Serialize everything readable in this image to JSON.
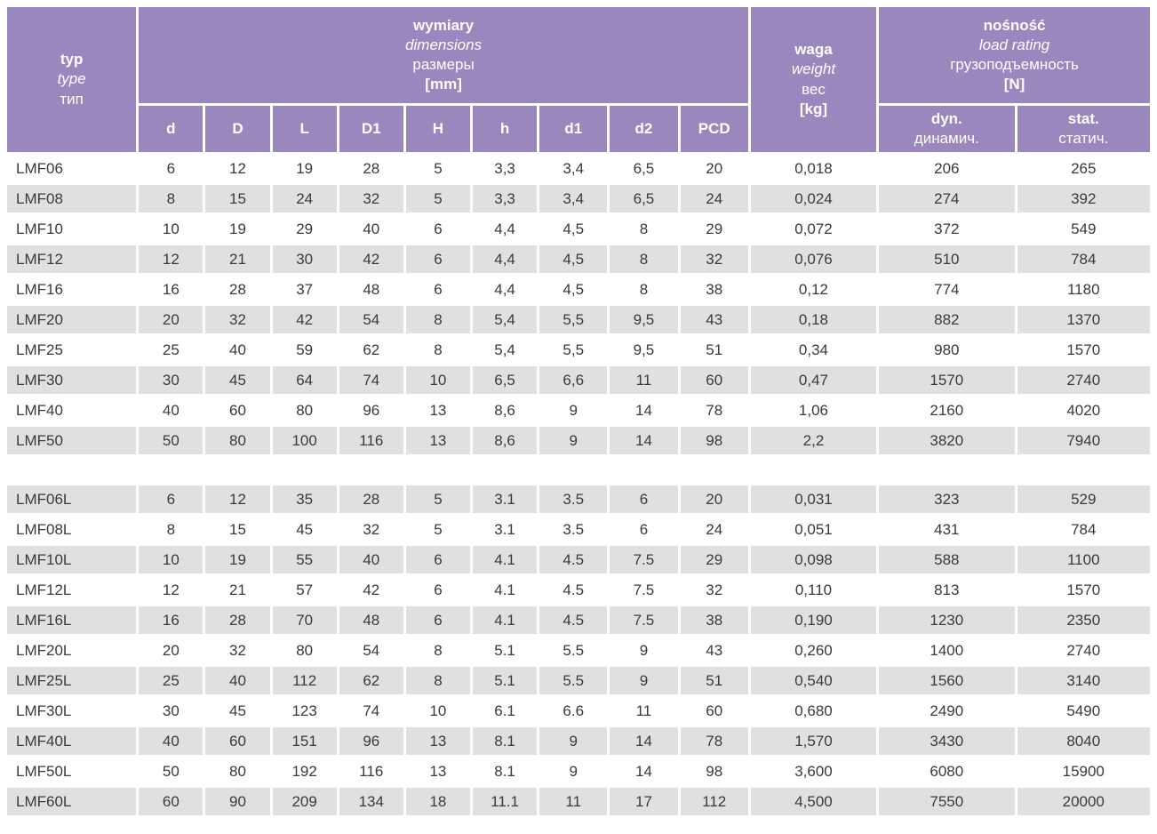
{
  "header": {
    "typ": {
      "pl": "typ",
      "en": "type",
      "ru": "тип"
    },
    "dimensions": {
      "pl": "wymiary",
      "en": "dimensions",
      "ru": "размеры",
      "unit": "[mm]"
    },
    "weight": {
      "pl": "waga",
      "en": "weight",
      "ru": "вес",
      "unit": "[kg]"
    },
    "load": {
      "pl": "nośność",
      "en": "load rating",
      "ru": "грузоподъемность",
      "unit": "[N]"
    },
    "dim_columns": [
      "d",
      "D",
      "L",
      "D1",
      "H",
      "h",
      "d1",
      "d2",
      "PCD"
    ],
    "dyn": {
      "label": "dyn.",
      "ru": "динамич."
    },
    "stat": {
      "label": "stat.",
      "ru": "статич."
    }
  },
  "columns_keys": [
    "typ",
    "d",
    "D",
    "L",
    "D1",
    "H",
    "h",
    "d1",
    "d2",
    "PCD",
    "waga",
    "dyn",
    "stat"
  ],
  "table": {
    "sections": [
      {
        "rows": [
          {
            "type": "LMF06",
            "values": [
              "6",
              "12",
              "19",
              "28",
              "5",
              "3,3",
              "3,4",
              "6,5",
              "20",
              "0,018",
              "206",
              "265"
            ]
          },
          {
            "type": "LMF08",
            "values": [
              "8",
              "15",
              "24",
              "32",
              "5",
              "3,3",
              "3,4",
              "6,5",
              "24",
              "0,024",
              "274",
              "392"
            ]
          },
          {
            "type": "LMF10",
            "values": [
              "10",
              "19",
              "29",
              "40",
              "6",
              "4,4",
              "4,5",
              "8",
              "29",
              "0,072",
              "372",
              "549"
            ]
          },
          {
            "type": "LMF12",
            "values": [
              "12",
              "21",
              "30",
              "42",
              "6",
              "4,4",
              "4,5",
              "8",
              "32",
              "0,076",
              "510",
              "784"
            ]
          },
          {
            "type": "LMF16",
            "values": [
              "16",
              "28",
              "37",
              "48",
              "6",
              "4,4",
              "4,5",
              "8",
              "38",
              "0,12",
              "774",
              "1180"
            ]
          },
          {
            "type": "LMF20",
            "values": [
              "20",
              "32",
              "42",
              "54",
              "8",
              "5,4",
              "5,5",
              "9,5",
              "43",
              "0,18",
              "882",
              "1370"
            ]
          },
          {
            "type": "LMF25",
            "values": [
              "25",
              "40",
              "59",
              "62",
              "8",
              "5,4",
              "5,5",
              "9,5",
              "51",
              "0,34",
              "980",
              "1570"
            ]
          },
          {
            "type": "LMF30",
            "values": [
              "30",
              "45",
              "64",
              "74",
              "10",
              "6,5",
              "6,6",
              "11",
              "60",
              "0,47",
              "1570",
              "2740"
            ]
          },
          {
            "type": "LMF40",
            "values": [
              "40",
              "60",
              "80",
              "96",
              "13",
              "8,6",
              "9",
              "14",
              "78",
              "1,06",
              "2160",
              "4020"
            ]
          },
          {
            "type": "LMF50",
            "values": [
              "50",
              "80",
              "100",
              "116",
              "13",
              "8,6",
              "9",
              "14",
              "98",
              "2,2",
              "3820",
              "7940"
            ]
          }
        ]
      },
      {
        "rows": [
          {
            "type": "LMF06L",
            "values": [
              "6",
              "12",
              "35",
              "28",
              "5",
              "3.1",
              "3.5",
              "6",
              "20",
              "0,031",
              "323",
              "529"
            ]
          },
          {
            "type": "LMF08L",
            "values": [
              "8",
              "15",
              "45",
              "32",
              "5",
              "3.1",
              "3.5",
              "6",
              "24",
              "0,051",
              "431",
              "784"
            ]
          },
          {
            "type": "LMF10L",
            "values": [
              "10",
              "19",
              "55",
              "40",
              "6",
              "4.1",
              "4.5",
              "7.5",
              "29",
              "0,098",
              "588",
              "1100"
            ]
          },
          {
            "type": "LMF12L",
            "values": [
              "12",
              "21",
              "57",
              "42",
              "6",
              "4.1",
              "4.5",
              "7.5",
              "32",
              "0,110",
              "813",
              "1570"
            ]
          },
          {
            "type": "LMF16L",
            "values": [
              "16",
              "28",
              "70",
              "48",
              "6",
              "4.1",
              "4.5",
              "7.5",
              "38",
              "0,190",
              "1230",
              "2350"
            ]
          },
          {
            "type": "LMF20L",
            "values": [
              "20",
              "32",
              "80",
              "54",
              "8",
              "5.1",
              "5.5",
              "9",
              "43",
              "0,260",
              "1400",
              "2740"
            ]
          },
          {
            "type": "LMF25L",
            "values": [
              "25",
              "40",
              "112",
              "62",
              "8",
              "5.1",
              "5.5",
              "9",
              "51",
              "0,540",
              "1560",
              "3140"
            ]
          },
          {
            "type": "LMF30L",
            "values": [
              "30",
              "45",
              "123",
              "74",
              "10",
              "6.1",
              "6.6",
              "11",
              "60",
              "0,680",
              "2490",
              "5490"
            ]
          },
          {
            "type": "LMF40L",
            "values": [
              "40",
              "60",
              "151",
              "96",
              "13",
              "8.1",
              "9",
              "14",
              "78",
              "1,570",
              "3430",
              "8040"
            ]
          },
          {
            "type": "LMF50L",
            "values": [
              "50",
              "80",
              "192",
              "116",
              "13",
              "8.1",
              "9",
              "14",
              "98",
              "3,600",
              "6080",
              "15900"
            ]
          },
          {
            "type": "LMF60L",
            "values": [
              "60",
              "90",
              "209",
              "134",
              "18",
              "11.1",
              "11",
              "17",
              "112",
              "4,500",
              "7550",
              "20000"
            ]
          }
        ]
      }
    ]
  },
  "colors": {
    "header_purple": "#9a87bd",
    "row_shaded": "#e0e0e0",
    "row_plain": "#ffffff",
    "text_dark": "#3a3a3a",
    "header_text": "#ffffff"
  }
}
